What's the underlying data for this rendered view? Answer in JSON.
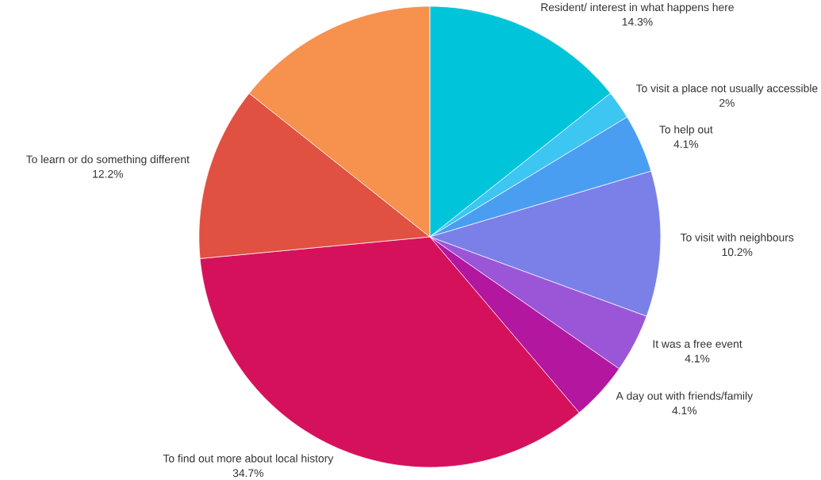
{
  "chart_data": {
    "type": "pie",
    "categories": [
      "Resident/ interest in what happens here",
      "To visit a place not usually accessible",
      "To help out",
      "To visit with neighbours",
      "It was a free event",
      "A day out with friends/family",
      "To find out more about local history",
      "To learn or do something different",
      null
    ],
    "values": [
      14.3,
      2,
      4.1,
      10.2,
      4.1,
      4.1,
      34.7,
      12.2,
      14.3
    ],
    "value_labels": [
      "14.3%",
      "2%",
      "4.1%",
      "10.2%",
      "4.1%",
      "4.1%",
      "34.7%",
      "12.2%",
      null
    ],
    "colors": [
      "#00c4d9",
      "#3dc6f2",
      "#4a9ef2",
      "#7a80e8",
      "#9b56d8",
      "#b3169f",
      "#d6115c",
      "#e05142",
      "#f6914e"
    ]
  }
}
